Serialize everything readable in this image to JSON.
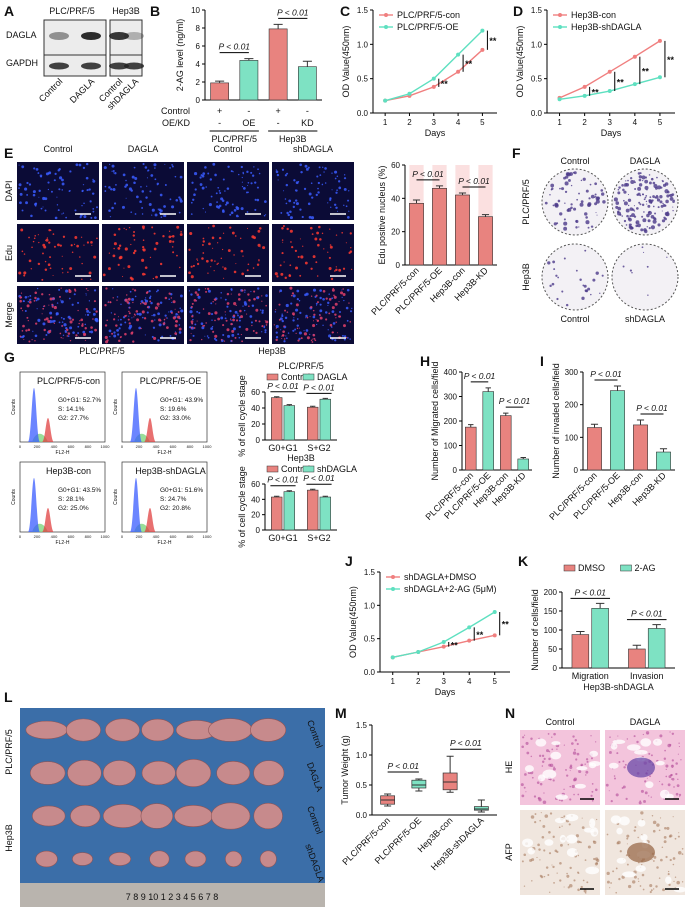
{
  "A": {
    "letter": "A",
    "groups": [
      "PLC/PRF/5",
      "Hep3B"
    ],
    "rows": [
      "DAGLA",
      "GAPDH"
    ],
    "lanes": [
      "Control",
      "DAGLA",
      "Control",
      "shDAGLA"
    ]
  },
  "B": {
    "letter": "B",
    "type": "bar",
    "ylabel": "2-AG level (ng/ml)",
    "ylim": [
      0,
      10
    ],
    "yticks": [
      0,
      2,
      4,
      6,
      8,
      10
    ],
    "values": [
      1.9,
      4.4,
      7.9,
      3.7
    ],
    "errors": [
      0.2,
      0.2,
      0.5,
      0.6
    ],
    "colors": [
      "#e8837f",
      "#7ee2c3",
      "#e8837f",
      "#7ee2c3"
    ],
    "annotations": [
      "P < 0.01",
      "P < 0.01"
    ],
    "row_labels": [
      "Control",
      "OE/KD"
    ],
    "row_values": [
      [
        "+",
        "-",
        "+",
        "-"
      ],
      [
        "-",
        "OE",
        "-",
        "KD"
      ]
    ],
    "groups": [
      "PLC/PRF/5",
      "Hep3B"
    ]
  },
  "C": {
    "letter": "C",
    "type": "line",
    "xlabel": "Days",
    "ylabel": "OD Value(450nm)",
    "x": [
      1,
      2,
      3,
      4,
      5
    ],
    "xlim": [
      0.5,
      5.6
    ],
    "xticks": [
      1,
      2,
      3,
      4,
      5
    ],
    "ylim": [
      0,
      1.5
    ],
    "yticks": [
      {
        "value": 0,
        "label": "0.0"
      },
      {
        "value": 0.5,
        "label": "0.5"
      },
      {
        "value": 1,
        "label": "1.0"
      },
      {
        "value": 1.5,
        "label": "1.5"
      }
    ],
    "series": [
      {
        "name": "PLC/PRF/5-con",
        "color": "#f07f7f",
        "values": [
          0.18,
          0.25,
          0.38,
          0.6,
          0.92
        ]
      },
      {
        "name": "PLC/PRF/5-OE",
        "color": "#5ee0c0",
        "values": [
          0.18,
          0.28,
          0.5,
          0.85,
          1.2
        ]
      }
    ],
    "annotations": [
      "**",
      "**",
      "**"
    ]
  },
  "D": {
    "letter": "D",
    "type": "line",
    "xlabel": "Days",
    "ylabel": "OD Value(450nm)",
    "x": [
      1,
      2,
      3,
      4,
      5
    ],
    "xlim": [
      0.5,
      5.6
    ],
    "xticks": [
      1,
      2,
      3,
      4,
      5
    ],
    "ylim": [
      0,
      1.5
    ],
    "yticks": [
      {
        "value": 0,
        "label": "0.0"
      },
      {
        "value": 0.5,
        "label": "0.5"
      },
      {
        "value": 1,
        "label": "1.0"
      },
      {
        "value": 1.5,
        "label": "1.5"
      }
    ],
    "series": [
      {
        "name": "Hep3B-con",
        "color": "#f07f7f",
        "values": [
          0.22,
          0.38,
          0.6,
          0.82,
          1.05
        ]
      },
      {
        "name": "Hep3B-shDAGLA",
        "color": "#5ee0c0",
        "values": [
          0.2,
          0.25,
          0.32,
          0.42,
          0.52
        ]
      }
    ],
    "annotations": [
      "**",
      "**",
      "**",
      "**"
    ]
  },
  "E": {
    "letter": "E",
    "columns": [
      "Control",
      "DAGLA",
      "Control",
      "shDAGLA"
    ],
    "rows": [
      "DAPI",
      "Edu",
      "Merge"
    ],
    "groups": [
      "PLC/PRF/5",
      "Hep3B"
    ],
    "chart": {
      "type": "bar",
      "ylabel": "Edu positive nucleus (%)",
      "ylim": [
        0,
        60
      ],
      "yticks": [
        0,
        20,
        40,
        60
      ],
      "categories": [
        "PLC/PRF/5-con",
        "PLC/PRF/5-OE",
        "Hep3B-con",
        "Hep3B-KD"
      ],
      "values": [
        37,
        46,
        42,
        29
      ],
      "errors": [
        2,
        1.5,
        1.2,
        1.2
      ],
      "colors": [
        "#e8837f",
        "#e8837f",
        "#e8837f",
        "#e8837f"
      ],
      "background": "#fbe0e0",
      "annotations": [
        "P < 0.01",
        "P < 0.01"
      ]
    }
  },
  "F": {
    "letter": "F",
    "top_labels": [
      "Control",
      "DAGLA"
    ],
    "bottom_labels": [
      "Control",
      "shDAGLA"
    ],
    "rows": [
      "PLC/PRF/5",
      "Hep3B"
    ]
  },
  "G": {
    "letter": "G",
    "flow_ylabel": "Counts",
    "flow_xlabel": "FL2-H",
    "flow_xticks": [
      0,
      200,
      400,
      600,
      800,
      1000
    ],
    "flows": [
      {
        "title": "PLC/PRF/5-con",
        "stats": [
          "G0+G1: 52.7%",
          "S: 14.1%",
          "G2: 27.7%"
        ]
      },
      {
        "title": "PLC/PRF/5-OE",
        "stats": [
          "G0+G1: 43.9%",
          "S: 19.6%",
          "G2: 33.0%"
        ]
      },
      {
        "title": "Hep3B-con",
        "stats": [
          "G0+G1: 43.5%",
          "S: 28.1%",
          "G2: 25.0%"
        ]
      },
      {
        "title": "Hep3B-shDAGLA",
        "stats": [
          "G0+G1: 51.6%",
          "S: 24.7%",
          "G2: 20.8%"
        ]
      }
    ],
    "charts": [
      {
        "type": "bar",
        "title": "PLC/PRF/5",
        "ylabel": "% of cell cycle stage",
        "ylim": [
          0,
          60
        ],
        "yticks": [
          0,
          20,
          40,
          60
        ],
        "categories": [
          "G0+G1",
          "S+G2"
        ],
        "series": [
          {
            "name": "Control",
            "color": "#e8837f",
            "values": [
              53,
              41
            ],
            "errors": [
              1,
              1.2
            ]
          },
          {
            "name": "DAGLA",
            "color": "#7ee2c3",
            "values": [
              43,
              51
            ],
            "errors": [
              1.2,
              1
            ]
          }
        ],
        "annotations": [
          "P < 0.01",
          "P < 0.01"
        ]
      },
      {
        "type": "bar",
        "title": "Hep3B",
        "ylabel": "% of cell cycle stage",
        "ylim": [
          0,
          60
        ],
        "yticks": [
          0,
          20,
          40,
          60
        ],
        "categories": [
          "G0+G1",
          "S+G2"
        ],
        "series": [
          {
            "name": "Control",
            "color": "#e8837f",
            "values": [
              43,
              52
            ],
            "errors": [
              1,
              1.2
            ]
          },
          {
            "name": "shDAGLA",
            "color": "#7ee2c3",
            "values": [
              50,
              43
            ],
            "errors": [
              1.2,
              1
            ]
          }
        ],
        "annotations": [
          "P < 0.01",
          "P < 0.01"
        ]
      }
    ]
  },
  "H": {
    "letter": "H",
    "type": "bar",
    "ylabel": "Number of Migrated cells/field",
    "ylim": [
      0,
      400
    ],
    "yticks": [
      0,
      100,
      200,
      300,
      400
    ],
    "categories": [
      "PLC/PRF/5-con",
      "PLC/PRF/5-OE",
      "Hep3B-con",
      "Hep3B-KD"
    ],
    "values": [
      175,
      320,
      222,
      45
    ],
    "errors": [
      10,
      15,
      10,
      6
    ],
    "colors": [
      "#e8837f",
      "#7ee2c3",
      "#e8837f",
      "#7ee2c3"
    ],
    "annotations": [
      "P < 0.01",
      "P < 0.01"
    ]
  },
  "I": {
    "letter": "I",
    "type": "bar",
    "ylabel": "Number of invaded cells/field",
    "ylim": [
      0,
      300
    ],
    "yticks": [
      0,
      100,
      200,
      300
    ],
    "categories": [
      "PLC/PRF/5-con",
      "PLC/PRF/5-OE",
      "Hep3B-con",
      "Hep3B-KD"
    ],
    "values": [
      130,
      243,
      138,
      55
    ],
    "errors": [
      10,
      14,
      15,
      10
    ],
    "colors": [
      "#e8837f",
      "#7ee2c3",
      "#e8837f",
      "#7ee2c3"
    ],
    "annotations": [
      "P < 0.01",
      "P < 0.01"
    ]
  },
  "J": {
    "letter": "J",
    "type": "line",
    "xlabel": "Days",
    "ylabel": "OD Value(450nm)",
    "x": [
      1,
      2,
      3,
      4,
      5
    ],
    "xlim": [
      0.5,
      5.6
    ],
    "xticks": [
      1,
      2,
      3,
      4,
      5
    ],
    "ylim": [
      0,
      1.5
    ],
    "yticks": [
      {
        "value": 0,
        "label": "0.0"
      },
      {
        "value": 0.5,
        "label": "0.5"
      },
      {
        "value": 1,
        "label": "1.0"
      },
      {
        "value": 1.5,
        "label": "1.5"
      }
    ],
    "series": [
      {
        "name": "shDAGLA+DMSO",
        "color": "#f07f7f",
        "values": [
          0.22,
          0.3,
          0.38,
          0.47,
          0.55
        ]
      },
      {
        "name": "shDAGLA+2-AG (5μM)",
        "color": "#5ee0c0",
        "values": [
          0.22,
          0.3,
          0.45,
          0.67,
          0.9
        ]
      }
    ],
    "annotations": [
      "**",
      "**",
      "**"
    ]
  },
  "K": {
    "letter": "K",
    "type": "bar",
    "ylabel": "Number of cells/field",
    "xlabel": "Hep3B-shDAGLA",
    "ylim": [
      0,
      200
    ],
    "yticks": [
      0,
      50,
      100,
      150,
      200
    ],
    "categories": [
      "Migration",
      "Invasion"
    ],
    "series": [
      {
        "name": "DMSO",
        "color": "#e8837f",
        "values": [
          88,
          50
        ],
        "errors": [
          8,
          10
        ]
      },
      {
        "name": "2-AG",
        "color": "#7ee2c3",
        "values": [
          157,
          104
        ],
        "errors": [
          13,
          10
        ]
      }
    ],
    "annotations": [
      "P < 0.01",
      "P < 0.01"
    ]
  },
  "L": {
    "letter": "L",
    "left_labels": [
      "PLC/PRF/5",
      "Hep3B"
    ],
    "right_labels": [
      "Control",
      "DAGLA",
      "Control",
      "shDAGLA"
    ],
    "ruler": "7 8 9 10 1 2 3 4 5 6 7 8"
  },
  "M": {
    "letter": "M",
    "type": "box",
    "ylabel": "Tumor Weight (g)",
    "ylim": [
      0,
      1.5
    ],
    "yticks": [
      {
        "value": 0,
        "label": "0.0"
      },
      {
        "value": 0.5,
        "label": "0.5"
      },
      {
        "value": 1,
        "label": "1.0"
      },
      {
        "value": 1.5,
        "label": "1.5"
      }
    ],
    "categories": [
      "PLC/PRF/5-con",
      "PLC/PRF/5-OE",
      "Hep3B-con",
      "Hep3B-shDAGLA"
    ],
    "boxes": [
      {
        "min": 0.15,
        "q1": 0.18,
        "median": 0.25,
        "q3": 0.32,
        "max": 0.35
      },
      {
        "min": 0.4,
        "q1": 0.45,
        "median": 0.5,
        "q3": 0.58,
        "max": 0.6
      },
      {
        "min": 0.38,
        "q1": 0.42,
        "median": 0.55,
        "q3": 0.7,
        "max": 0.98
      },
      {
        "min": 0.05,
        "q1": 0.08,
        "median": 0.1,
        "q3": 0.14,
        "max": 0.25
      }
    ],
    "colors": [
      "#e8837f",
      "#7ee2c3",
      "#e8837f",
      "#7ee2c3"
    ],
    "annotations": [
      "P < 0.01",
      "P < 0.01"
    ]
  },
  "N": {
    "letter": "N",
    "columns": [
      "Control",
      "DAGLA"
    ],
    "rows": [
      "HE",
      "AFP"
    ]
  }
}
